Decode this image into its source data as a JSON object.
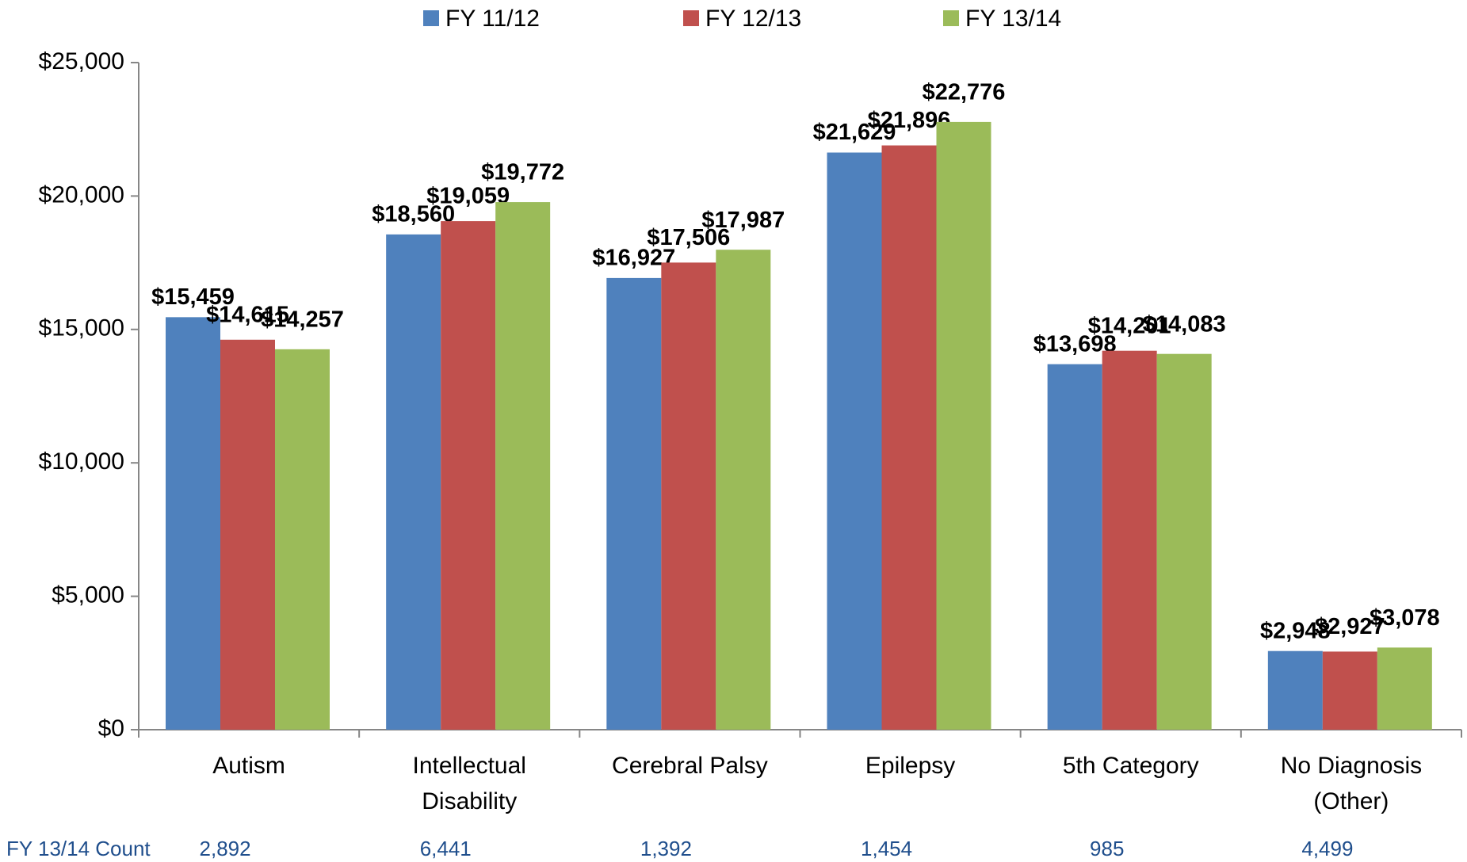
{
  "chart_data": {
    "type": "bar",
    "categories": [
      "Autism",
      "Intellectual\nDisability",
      "Cerebral Palsy",
      "Epilepsy",
      "5th Category",
      "No Diagnosis\n(Other)"
    ],
    "series": [
      {
        "name": "FY 11/12",
        "color": "#4f81bd",
        "values": [
          15459,
          18560,
          16927,
          21629,
          13698,
          2948
        ],
        "value_labels": [
          "$15,459",
          "$18,560",
          "$16,927",
          "$21,629",
          "$13,698",
          "$2,948"
        ]
      },
      {
        "name": "FY 12/13",
        "color": "#c0504d",
        "values": [
          14615,
          19059,
          17506,
          21896,
          14201,
          2927
        ],
        "value_labels": [
          "$14,615",
          "$19,059",
          "$17,506",
          "$21,896",
          "$14,201",
          "$2,927"
        ]
      },
      {
        "name": "FY 13/14",
        "color": "#9bbb59",
        "values": [
          14257,
          19772,
          17987,
          22776,
          14083,
          3078
        ],
        "value_labels": [
          "$14,257",
          "$19,772",
          "$17,987",
          "$22,776",
          "$14,083",
          "$3,078"
        ]
      }
    ],
    "ylim": [
      0,
      25000
    ],
    "yticks": [
      {
        "value": 0,
        "label": "$0"
      },
      {
        "value": 5000,
        "label": "$5,000"
      },
      {
        "value": 10000,
        "label": "$10,000"
      },
      {
        "value": 15000,
        "label": "$15,000"
      },
      {
        "value": 20000,
        "label": "$20,000"
      },
      {
        "value": 25000,
        "label": "$25,000"
      }
    ],
    "legend": "top",
    "count_row": {
      "label": "FY 13/14 Count",
      "values": [
        2892,
        6441,
        1392,
        1454,
        985,
        4499
      ],
      "value_labels": [
        "2,892",
        "6,441",
        "1,392",
        "1,454",
        "985",
        "4,499"
      ]
    }
  }
}
